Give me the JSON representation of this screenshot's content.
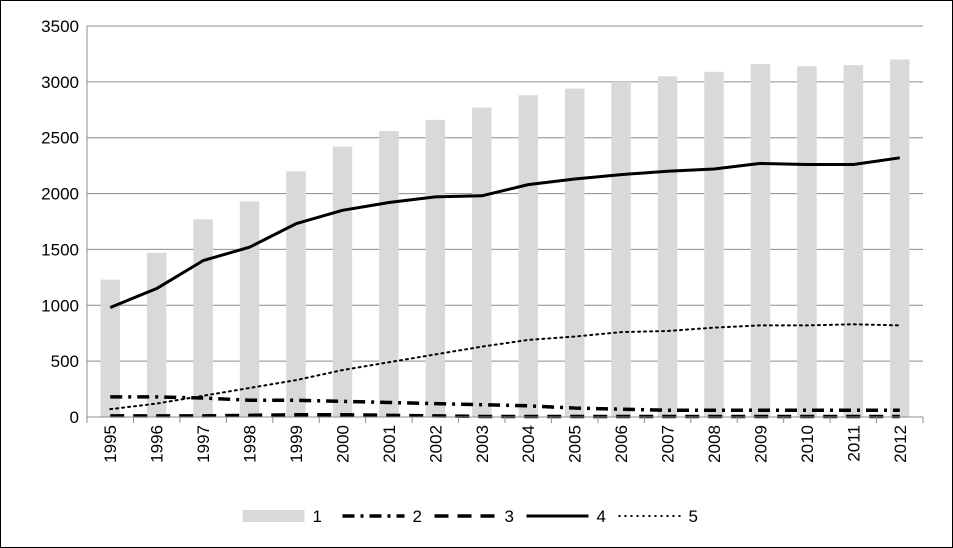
{
  "chart_data": {
    "type": "bar",
    "categories": [
      "1995",
      "1996",
      "1997",
      "1998",
      "1999",
      "2000",
      "2001",
      "2002",
      "2003",
      "2004",
      "2005",
      "2006",
      "2007",
      "2008",
      "2009",
      "2010",
      "2011",
      "2012"
    ],
    "ylim": [
      0,
      3500
    ],
    "yticks": [
      "0",
      "500",
      "1000",
      "1500",
      "2000",
      "2500",
      "3000",
      "3500"
    ],
    "grid": true,
    "legend_position": "bottom",
    "series": [
      {
        "name": "1",
        "kind": "bar",
        "color": "#d9d9d9",
        "values": [
          1230,
          1470,
          1770,
          1930,
          2200,
          2420,
          2560,
          2660,
          2770,
          2880,
          2940,
          3000,
          3050,
          3090,
          3160,
          3140,
          3150,
          3200
        ]
      },
      {
        "name": "2",
        "kind": "line",
        "style": "dash-dot",
        "color": "#000000",
        "values": [
          180,
          180,
          170,
          150,
          150,
          140,
          130,
          120,
          110,
          100,
          80,
          70,
          60,
          60,
          60,
          60,
          60,
          60
        ]
      },
      {
        "name": "3",
        "kind": "line",
        "style": "dashed",
        "color": "#000000",
        "values": [
          10,
          10,
          10,
          15,
          20,
          20,
          15,
          10,
          5,
          5,
          5,
          5,
          5,
          5,
          5,
          5,
          5,
          5
        ]
      },
      {
        "name": "4",
        "kind": "line",
        "style": "solid",
        "color": "#000000",
        "values": [
          980,
          1150,
          1400,
          1520,
          1730,
          1850,
          1920,
          1970,
          1980,
          2080,
          2130,
          2170,
          2200,
          2220,
          2270,
          2260,
          2260,
          2320
        ]
      },
      {
        "name": "5",
        "kind": "line",
        "style": "dotted",
        "color": "#000000",
        "values": [
          70,
          120,
          190,
          260,
          330,
          420,
          490,
          560,
          630,
          690,
          720,
          760,
          770,
          800,
          820,
          820,
          830,
          820
        ]
      }
    ]
  }
}
